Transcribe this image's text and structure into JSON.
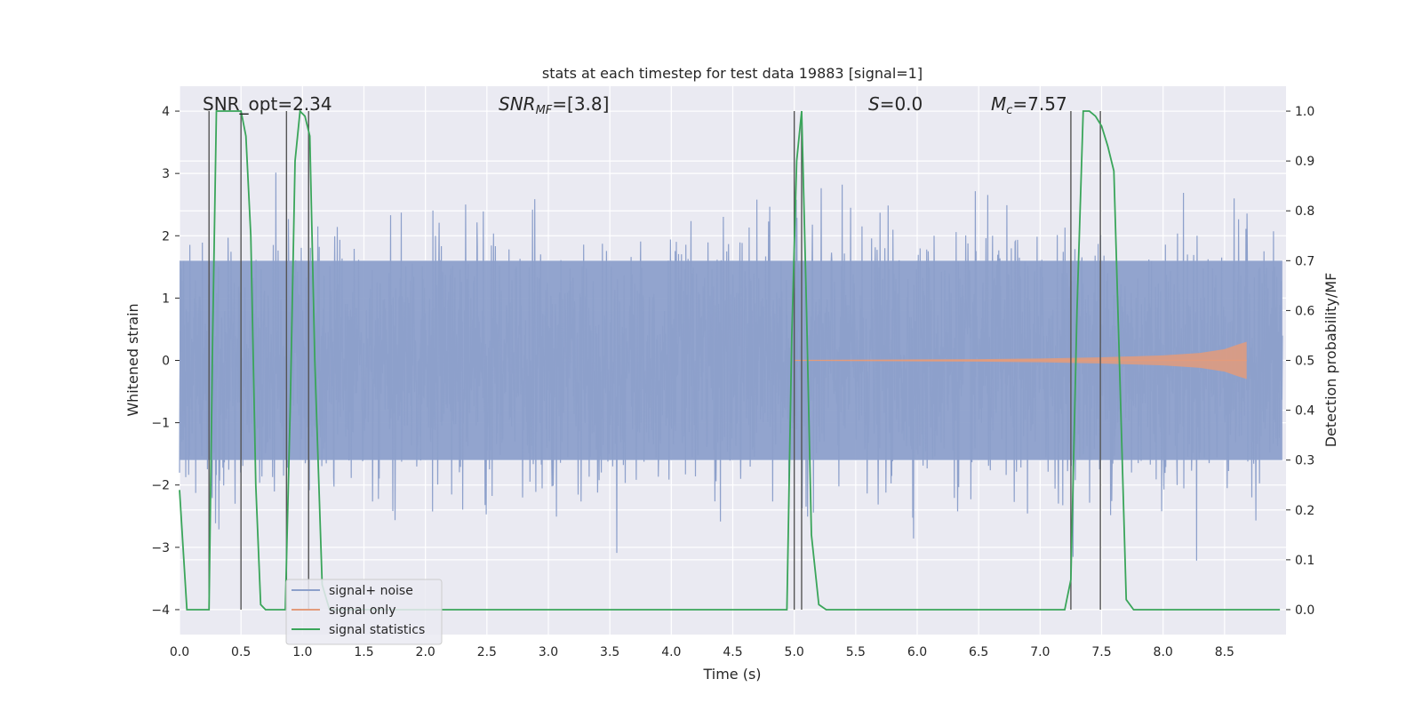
{
  "chart_data": {
    "type": "line",
    "title": "stats at each timestep for test data 19883 [signal=1]",
    "xlabel": "Time (s)",
    "ylabel": "Whitened strain",
    "ylabel_right": "Detection probability/MF",
    "xlim": [
      0,
      9.0
    ],
    "ylim": [
      -4.4,
      4.4
    ],
    "ylim_right": [
      -0.05,
      1.05
    ],
    "x_ticks": [
      "0.0",
      "0.5",
      "1.0",
      "1.5",
      "2.0",
      "2.5",
      "3.0",
      "3.5",
      "4.0",
      "4.5",
      "5.0",
      "5.5",
      "6.0",
      "6.5",
      "7.0",
      "7.5",
      "8.0",
      "8.5"
    ],
    "x_tick_values": [
      0,
      0.5,
      1.0,
      1.5,
      2.0,
      2.5,
      3.0,
      3.5,
      4.0,
      4.5,
      5.0,
      5.5,
      6.0,
      6.5,
      7.0,
      7.5,
      8.0,
      8.5
    ],
    "y_ticks": [
      "−4",
      "−3",
      "−2",
      "−1",
      "0",
      "1",
      "2",
      "3",
      "4"
    ],
    "y_tick_values": [
      -4,
      -3,
      -2,
      -1,
      0,
      1,
      2,
      3,
      4
    ],
    "y_right_ticks": [
      "0.0",
      "0.1",
      "0.2",
      "0.3",
      "0.4",
      "0.5",
      "0.6",
      "0.7",
      "0.8",
      "0.9",
      "1.0"
    ],
    "y_right_tick_values": [
      0,
      0.1,
      0.2,
      0.3,
      0.4,
      0.5,
      0.6,
      0.7,
      0.8,
      0.9,
      1.0
    ],
    "annotations": {
      "snr_opt": "SNR_opt=2.34",
      "snr_mf_main": "SNR",
      "snr_mf_sub": "MF",
      "snr_mf_rest": "=[3.8]",
      "s_main": "S",
      "s_rest": "=0.0",
      "mc_main": "M",
      "mc_sub": "c",
      "mc_rest": "=7.57"
    },
    "legend": {
      "position": "lower-left",
      "entries": [
        "signal+ noise",
        "signal only",
        "signal statistics"
      ]
    },
    "colors": {
      "noise": "#8da0cb",
      "signal": "#e39b7b",
      "stats": "#3aa55a",
      "vlines": "#555555",
      "background": "#eaeaf2",
      "grid": "#ffffff"
    },
    "series": [
      {
        "name": "signal statistics",
        "x": [
          0.0,
          0.06,
          0.12,
          0.18,
          0.24,
          0.27,
          0.3,
          0.36,
          0.42,
          0.48,
          0.5,
          0.54,
          0.58,
          0.62,
          0.66,
          0.7,
          0.78,
          0.86,
          0.9,
          0.94,
          0.98,
          1.02,
          1.06,
          1.1,
          1.16,
          1.22,
          1.3,
          1.5,
          2.0,
          3.0,
          4.0,
          4.5,
          4.94,
          4.98,
          5.02,
          5.06,
          5.1,
          5.14,
          5.2,
          5.26,
          5.4,
          6.0,
          6.5,
          7.0,
          7.2,
          7.25,
          7.3,
          7.35,
          7.4,
          7.45,
          7.5,
          7.55,
          7.6,
          7.65,
          7.7,
          7.76,
          7.9,
          8.5,
          8.95
        ],
        "y": [
          0.24,
          0.0,
          0.0,
          0.0,
          0.0,
          0.55,
          1.0,
          1.0,
          1.0,
          1.0,
          1.0,
          0.95,
          0.75,
          0.25,
          0.01,
          0.0,
          0.0,
          0.0,
          0.4,
          0.9,
          1.0,
          0.99,
          0.95,
          0.5,
          0.05,
          0.0,
          0.0,
          0.0,
          0.0,
          0.0,
          0.0,
          0.0,
          0.0,
          0.55,
          0.9,
          1.0,
          0.6,
          0.15,
          0.01,
          0.0,
          0.0,
          0.0,
          0.0,
          0.0,
          0.0,
          0.06,
          0.6,
          1.0,
          1.0,
          0.99,
          0.97,
          0.93,
          0.88,
          0.45,
          0.02,
          0.0,
          0.0,
          0.0,
          0.0
        ]
      },
      {
        "name": "signal only",
        "x": [
          5.0,
          5.5,
          6.0,
          6.5,
          7.0,
          7.5,
          8.0,
          8.3,
          8.5,
          8.6,
          8.68
        ],
        "envelope": [
          0.005,
          0.01,
          0.015,
          0.02,
          0.03,
          0.05,
          0.08,
          0.12,
          0.18,
          0.25,
          0.3
        ]
      },
      {
        "name": "signal+ noise",
        "sigma": 0.95,
        "x_range": [
          0,
          8.97
        ],
        "dense_min": -1.6,
        "dense_max": 1.6
      }
    ],
    "vertical_lines_x": [
      0.24,
      0.5,
      0.87,
      1.05,
      5.0,
      5.06,
      7.25,
      7.49
    ]
  }
}
